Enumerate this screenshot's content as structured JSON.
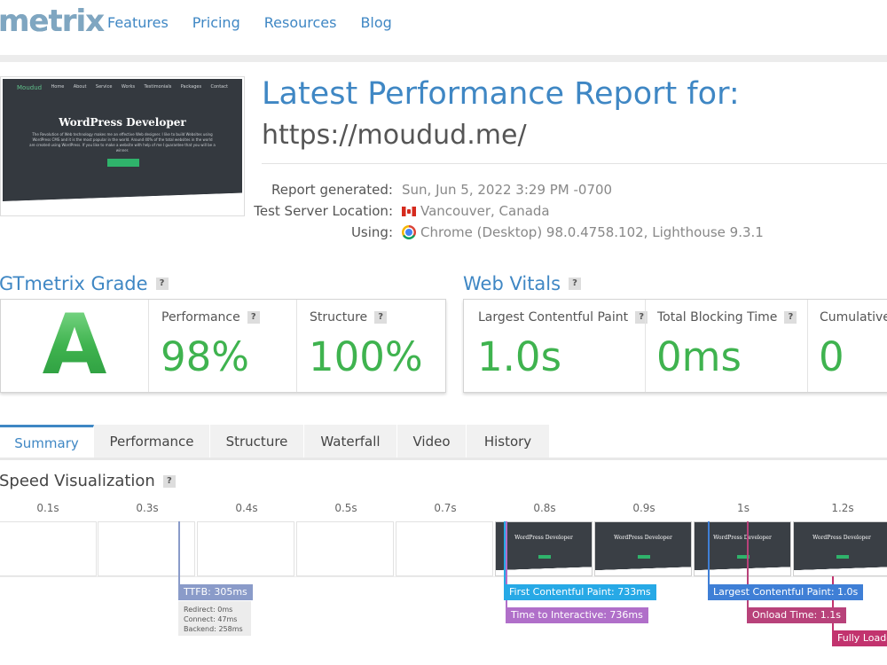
{
  "header": {
    "logo": "metrix",
    "nav": [
      "Features",
      "Pricing",
      "Resources",
      "Blog"
    ]
  },
  "thumbnail": {
    "brand": "Moudud",
    "nav": [
      "Home",
      "About",
      "Service",
      "Works",
      "Testimonials",
      "Packages",
      "Contact"
    ],
    "title": "WordPress Developer",
    "text": "The Revolution of Web technology makes me an effective Web designer. I like to build Websites using WordPress CMS and it is the most popular in the world. Around 40% of the total websites in the world are created using WordPress. If you like to make a website with help of me I guarantee that you will be a winner."
  },
  "report": {
    "title": "Latest Performance Report for:",
    "url": "https://moudud.me/",
    "generated_label": "Report generated:",
    "generated_value": "Sun, Jun 5, 2022 3:29 PM -0700",
    "location_label": "Test Server Location:",
    "location_value": "Vancouver, Canada",
    "using_label": "Using:",
    "using_value": "Chrome (Desktop) 98.0.4758.102, Lighthouse 9.3.1"
  },
  "grade": {
    "heading": "GTmetrix Grade",
    "help": "?",
    "letter": "A",
    "performance_label": "Performance",
    "performance_value": "98%",
    "structure_label": "Structure",
    "structure_value": "100%"
  },
  "vitals": {
    "heading": "Web Vitals",
    "help": "?",
    "lcp_label": "Largest Contentful Paint",
    "lcp_value": "1.0s",
    "tbt_label": "Total Blocking Time",
    "tbt_value": "0ms",
    "cls_label": "Cumulative",
    "cls_value": "0"
  },
  "tabs": [
    "Summary",
    "Performance",
    "Structure",
    "Waterfall",
    "Video",
    "History"
  ],
  "speed": {
    "heading": "Speed Visualization",
    "help": "?",
    "ticks": [
      "0.1s",
      "0.3s",
      "0.4s",
      "0.5s",
      "0.7s",
      "0.8s",
      "0.9s",
      "1s",
      "1.2s"
    ],
    "frame_title": "WordPress Developer",
    "markers": {
      "ttfb": "TTFB: 305ms",
      "fcp": "First Contentful Paint: 733ms",
      "tti": "Time to Interactive: 736ms",
      "lcp": "Largest Contentful Paint: 1.0s",
      "onload": "Onload Time: 1.1s",
      "fully": "Fully Loaded"
    },
    "ttfb_detail": [
      "Redirect: 0ms",
      "Connect: 47ms",
      "Backend: 258ms"
    ]
  },
  "colors": {
    "accent": "#3f87c4",
    "grade_green": "#3fb34f",
    "ttfb": "#8a9bc9",
    "fcp": "#27a9e6",
    "tti": "#b06fc9",
    "lcp": "#3f7fd6",
    "onload": "#b8427a",
    "fully": "#c2336e"
  }
}
